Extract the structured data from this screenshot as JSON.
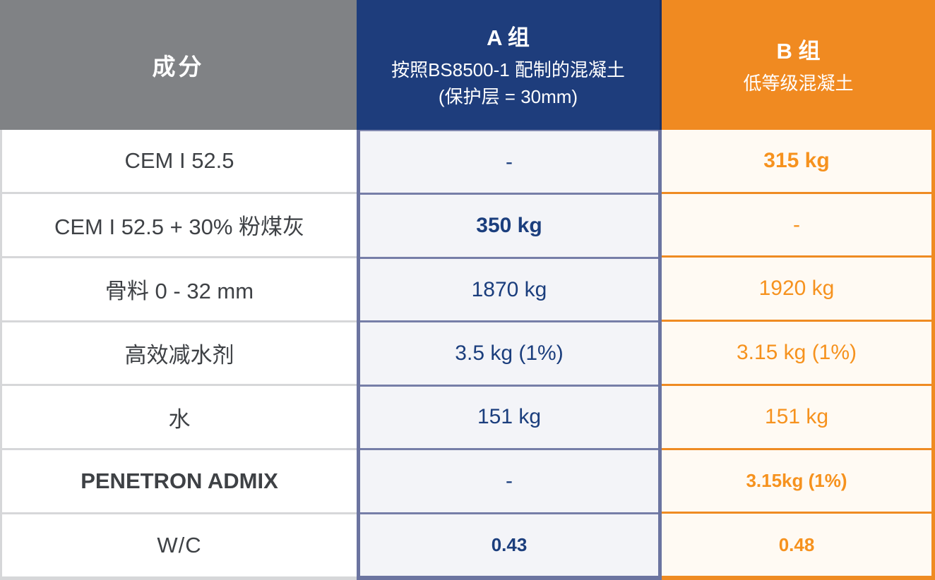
{
  "table": {
    "header": {
      "ingredient_label": "成分",
      "col_a": {
        "title": "A 组",
        "subtitle": "按照BS8500-1 配制的混凝土(保护层 = 30mm)"
      },
      "col_b": {
        "title": "B 组",
        "subtitle": "低等级混凝土"
      }
    },
    "rows": [
      {
        "label": "CEM I 52.5",
        "a": "-",
        "b": "315 kg"
      },
      {
        "label": "CEM I 52.5 + 30% 粉煤灰",
        "a": "350 kg",
        "b": "-"
      },
      {
        "label": "骨料 0 - 32 mm",
        "a": "1870 kg",
        "b": "1920 kg"
      },
      {
        "label": "高效减水剂",
        "a": "3.5 kg (1%)",
        "b": "3.15 kg (1%)"
      },
      {
        "label": "水",
        "a": "151 kg",
        "b": "151 kg"
      },
      {
        "label": "PENETRON ADMIX",
        "a": "-",
        "b": "3.15kg (1%)"
      },
      {
        "label": "W/C",
        "a": "0.43",
        "b": "0.48"
      }
    ]
  },
  "chart_data": {
    "type": "table",
    "columns": [
      "成分",
      "A 组 — 按照BS8500-1 配制的混凝土(保护层 = 30mm)",
      "B 组 — 低等级混凝土"
    ],
    "rows": [
      [
        "CEM I 52.5",
        "-",
        "315 kg"
      ],
      [
        "CEM I 52.5 + 30% 粉煤灰",
        "350 kg",
        "-"
      ],
      [
        "骨料 0 - 32 mm",
        "1870 kg",
        "1920 kg"
      ],
      [
        "高效减水剂",
        "3.5 kg (1%)",
        "3.15 kg (1%)"
      ],
      [
        "水",
        "151 kg",
        "151 kg"
      ],
      [
        "PENETRON ADMIX",
        "-",
        "3.15kg (1%)"
      ],
      [
        "W/C",
        "0.43",
        "0.48"
      ]
    ]
  },
  "colors": {
    "header_gray": "#808285",
    "header_navy": "#1e3d7c",
    "header_orange": "#f08a21",
    "body_a_bg": "#f3f4f8",
    "body_b_bg": "#fffaf3",
    "border_purple": "#6b74a0",
    "border_orange": "#ef8b22",
    "border_gray": "#d6d7d9",
    "text_label": "#3e4145",
    "text_navy": "#1b3e7d",
    "text_orange": "#f6921e"
  }
}
